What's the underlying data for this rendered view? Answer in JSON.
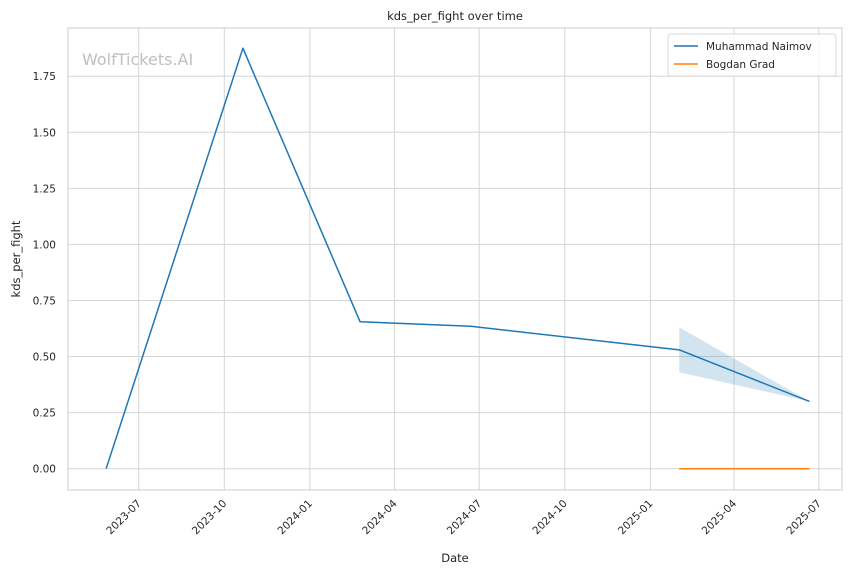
{
  "chart_data": {
    "type": "line",
    "title": "kds_per_fight over time",
    "xlabel": "Date",
    "ylabel": "kds_per_fight",
    "watermark": "WolfTickets.AI",
    "x_ticks": [
      "2023-07",
      "2023-10",
      "2024-01",
      "2024-04",
      "2024-07",
      "2024-10",
      "2025-01",
      "2025-04",
      "2025-07"
    ],
    "y_ticks": [
      "0.00",
      "0.25",
      "0.50",
      "0.75",
      "1.00",
      "1.25",
      "1.50",
      "1.75"
    ],
    "xlim": [
      "2023-04-16",
      "2025-07-26"
    ],
    "ylim": [
      -0.095,
      1.965
    ],
    "grid": true,
    "legend_position": "top-right",
    "series": [
      {
        "name": "Muhammad Naimov",
        "color": "#1f77b4",
        "points": [
          {
            "x": "2023-05-27",
            "y": 0.0
          },
          {
            "x": "2023-10-21",
            "y": 1.875
          },
          {
            "x": "2024-02-24",
            "y": 0.655
          },
          {
            "x": "2024-06-22",
            "y": 0.635
          },
          {
            "x": "2025-02-01",
            "y": 0.53
          },
          {
            "x": "2025-06-21",
            "y": 0.3
          }
        ],
        "band": [
          {
            "x": "2025-02-01",
            "low": 0.43,
            "high": 0.63
          },
          {
            "x": "2025-06-21",
            "low": 0.3,
            "high": 0.3
          }
        ]
      },
      {
        "name": "Bogdan Grad",
        "color": "#ff7f0e",
        "points": [
          {
            "x": "2025-02-01",
            "y": 0.0
          },
          {
            "x": "2025-06-21",
            "y": 0.0
          }
        ]
      }
    ]
  }
}
